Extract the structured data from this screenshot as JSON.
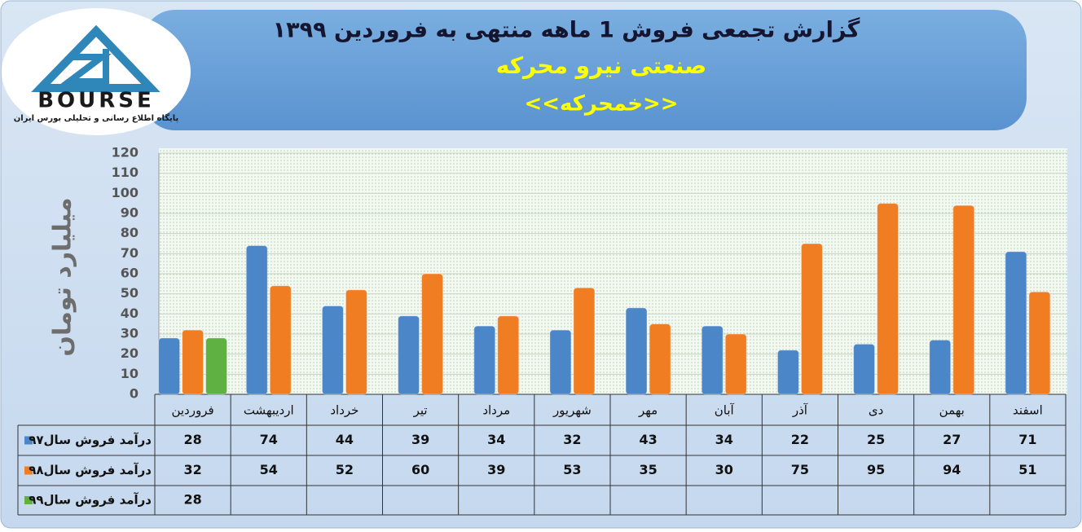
{
  "logo": {
    "text": "BOURSE",
    "caption": "پایگاه اطلاع رسانی و تحلیلی بورس ایران"
  },
  "chart_data": {
    "type": "bar",
    "title": "گزارش تجمعی فروش  1 ماهه منتهی به فروردین ۱۳۹۹",
    "subtitle": "صنعتی نیرو محرکه",
    "ticker": "<<خمحرکه>>",
    "y_label": "میلیارد تومان",
    "categories": [
      "فروردین",
      "اردیبهشت",
      "خرداد",
      "تیر",
      "مرداد",
      "شهریور",
      "مهر",
      "آبان",
      "آذر",
      "دی",
      "بهمن",
      "اسفند"
    ],
    "series": [
      {
        "name": "درآمد فروش سال۹۷",
        "color": "#4a86c8",
        "values": [
          28,
          74,
          44,
          39,
          34,
          32,
          43,
          34,
          22,
          25,
          27,
          71
        ]
      },
      {
        "name": "درآمد فروش سال۹۸",
        "color": "#f07d22",
        "values": [
          32,
          54,
          52,
          60,
          39,
          53,
          35,
          30,
          75,
          95,
          94,
          51
        ]
      },
      {
        "name": "درآمد فروش سال۹۹",
        "color": "#5fb142",
        "values": [
          28,
          null,
          null,
          null,
          null,
          null,
          null,
          null,
          null,
          null,
          null,
          null
        ]
      }
    ],
    "ylim": [
      0,
      120
    ],
    "yticks": [
      0,
      10,
      20,
      30,
      40,
      50,
      60,
      70,
      80,
      90,
      100,
      110,
      120
    ],
    "grid": true
  }
}
